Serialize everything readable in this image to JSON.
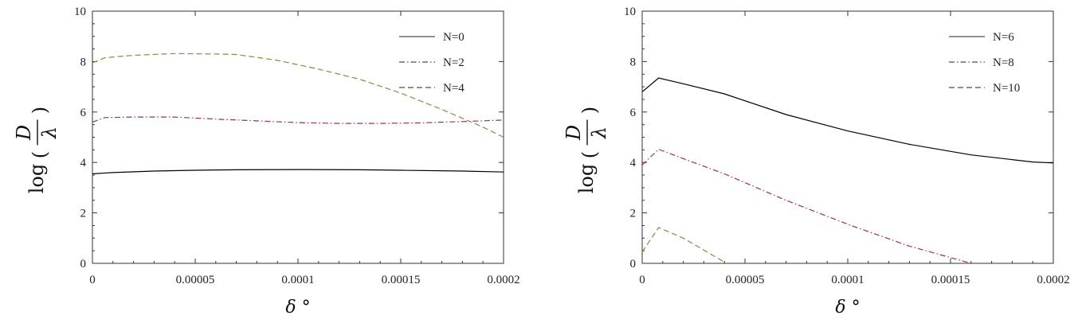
{
  "chart_data": [
    {
      "type": "line",
      "xlabel": "δ °",
      "ylabel": "log(D/λ)",
      "ylabel_parts": {
        "fn": "log",
        "num": "D",
        "den": "λ"
      },
      "xlim": [
        0,
        0.0002
      ],
      "ylim": [
        0,
        10
      ],
      "xticks": [
        0,
        5e-05,
        0.0001,
        0.00015,
        0.0002
      ],
      "xtick_labels": [
        "0",
        "0.00005",
        "0.0001",
        "0.00015",
        "0.0002"
      ],
      "yticks": [
        0,
        2,
        4,
        6,
        8,
        10
      ],
      "ytick_labels": [
        "0",
        "2",
        "4",
        "6",
        "8",
        "10"
      ],
      "grid": false,
      "legend_position": "top-right",
      "series": [
        {
          "name": "N=0",
          "style": "solid",
          "color": "#000000",
          "x": [
            0,
            1e-05,
            3e-05,
            5e-05,
            7e-05,
            0.0001,
            0.00013,
            0.00015,
            0.00018,
            0.0002
          ],
          "y": [
            3.55,
            3.6,
            3.66,
            3.69,
            3.71,
            3.72,
            3.71,
            3.69,
            3.66,
            3.62
          ]
        },
        {
          "name": "N=2",
          "style": "dashdot",
          "color": "#a0304c",
          "x": [
            0,
            6e-06,
            2e-05,
            4e-05,
            6e-05,
            8e-05,
            0.0001,
            0.00012,
            0.00014,
            0.00016,
            0.00018,
            0.0002
          ],
          "y": [
            5.6,
            5.78,
            5.8,
            5.8,
            5.72,
            5.65,
            5.58,
            5.55,
            5.55,
            5.57,
            5.62,
            5.68
          ]
        },
        {
          "name": "N=4",
          "style": "dashed",
          "color": "#8a8a3c",
          "x": [
            0,
            6e-06,
            2e-05,
            4e-05,
            6e-05,
            7e-05,
            9e-05,
            0.00011,
            0.00013,
            0.00015,
            0.00017,
            0.00019,
            0.0002
          ],
          "y": [
            7.95,
            8.15,
            8.25,
            8.32,
            8.3,
            8.28,
            8.05,
            7.7,
            7.3,
            6.75,
            6.1,
            5.4,
            5.0
          ]
        }
      ]
    },
    {
      "type": "line",
      "xlabel": "δ °",
      "ylabel": "log(D/λ)",
      "ylabel_parts": {
        "fn": "log",
        "num": "D",
        "den": "λ"
      },
      "xlim": [
        0,
        0.0002
      ],
      "ylim": [
        0,
        10
      ],
      "xticks": [
        0,
        5e-05,
        0.0001,
        0.00015,
        0.0002
      ],
      "xtick_labels": [
        "0",
        "0.00005",
        "0.0001",
        "0.00015",
        "0.0002"
      ],
      "yticks": [
        0,
        2,
        4,
        6,
        8,
        10
      ],
      "ytick_labels": [
        "0",
        "2",
        "4",
        "6",
        "8",
        "10"
      ],
      "grid": false,
      "legend_position": "top-right",
      "series": [
        {
          "name": "N=6",
          "style": "solid",
          "color": "#000000",
          "x": [
            0,
            8e-06,
            2e-05,
            4e-05,
            7e-05,
            0.0001,
            0.00013,
            0.00016,
            0.00019,
            0.0002
          ],
          "y": [
            6.8,
            7.35,
            7.12,
            6.72,
            5.9,
            5.25,
            4.72,
            4.3,
            4.02,
            3.98
          ]
        },
        {
          "name": "N=8",
          "style": "dashdot",
          "color": "#a0304c",
          "x": [
            0,
            8e-06,
            2e-05,
            4e-05,
            7e-05,
            0.0001,
            0.00013,
            0.00016
          ],
          "y": [
            3.9,
            4.52,
            4.15,
            3.55,
            2.5,
            1.55,
            0.68,
            0.0
          ]
        },
        {
          "name": "N=10",
          "style": "dashed",
          "color": "#8a8a3c",
          "x": [
            0,
            8e-06,
            2e-05,
            4e-05
          ],
          "y": [
            0.45,
            1.42,
            1.0,
            0.05
          ]
        }
      ]
    }
  ]
}
